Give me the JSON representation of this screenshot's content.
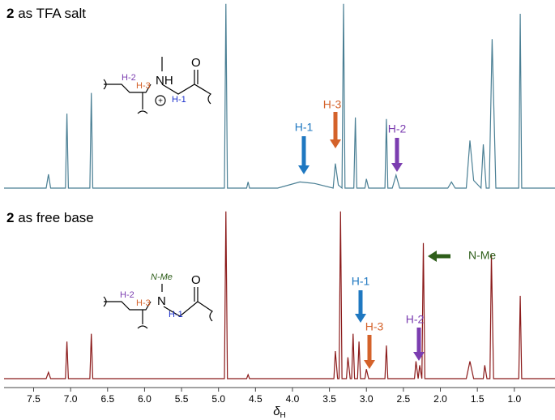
{
  "chart_data": [
    {
      "type": "line",
      "title_number": "2",
      "title": "as TFA salt",
      "color": "#4a7f94",
      "xlim": [
        7.9,
        0.45
      ],
      "ylim": [
        -5,
        240
      ],
      "x": [
        7.9,
        7.33,
        7.3,
        7.27,
        7.07,
        7.05,
        7.03,
        6.74,
        6.72,
        6.7,
        4.92,
        4.9,
        4.88,
        4.62,
        4.6,
        4.58,
        4.2,
        3.9,
        3.7,
        3.45,
        3.42,
        3.38,
        3.33,
        3.31,
        3.29,
        3.17,
        3.15,
        3.13,
        3.02,
        3.0,
        2.97,
        2.75,
        2.73,
        2.71,
        2.65,
        2.6,
        2.55,
        1.9,
        1.85,
        1.8,
        1.65,
        1.6,
        1.55,
        1.45,
        1.42,
        1.38,
        1.34,
        1.3,
        1.25,
        0.94,
        0.92,
        0.9,
        0.45
      ],
      "values": [
        0,
        0,
        18,
        0,
        0,
        97,
        0,
        0,
        124,
        0,
        0,
        240,
        0,
        0,
        8,
        0,
        0,
        8,
        6,
        0,
        32,
        4,
        0,
        240,
        0,
        0,
        92,
        0,
        0,
        12,
        0,
        0,
        90,
        0,
        0,
        17,
        0,
        0,
        8,
        0,
        0,
        62,
        10,
        0,
        57,
        0,
        0,
        194,
        0,
        0,
        227,
        0,
        0
      ],
      "annotations": [
        {
          "text": "H-1",
          "color": "#1f78c1"
        },
        {
          "text": "H-3",
          "color": "#d4622a"
        },
        {
          "text": "H-2",
          "color": "#7b3db0"
        }
      ],
      "structure_labels": [
        "H-2",
        "H-3",
        "NH",
        "H-1",
        "O"
      ]
    },
    {
      "type": "line",
      "title_number": "2",
      "title": "as free base",
      "color": "#8b1a1a",
      "xlim": [
        7.9,
        0.45
      ],
      "ylim": [
        -3,
        215
      ],
      "xticks": [
        7.5,
        {
          "value": 7,
          "label": "7.0"
        },
        6.5,
        {
          "value": 6,
          "label": "6.0"
        },
        5.5,
        {
          "value": 5,
          "label": "5.0"
        },
        4.5,
        {
          "value": 4,
          "label": "4.0"
        },
        3.5,
        {
          "value": 3,
          "label": "3.0"
        },
        2.5,
        {
          "value": 2,
          "label": "2.0"
        },
        1.5,
        {
          "value": 1,
          "label": "1.0"
        }
      ],
      "xlabel": {
        "symbol": "δ",
        "subscript": "H"
      },
      "x": [
        7.9,
        7.33,
        7.3,
        7.27,
        7.07,
        7.05,
        7.03,
        6.74,
        6.72,
        6.7,
        4.92,
        4.9,
        4.88,
        4.62,
        4.6,
        4.58,
        3.44,
        3.42,
        3.39,
        3.37,
        3.35,
        3.33,
        3.27,
        3.25,
        3.22,
        3.2,
        3.18,
        3.16,
        3.12,
        3.1,
        3.08,
        3.02,
        3.0,
        2.97,
        2.75,
        2.73,
        2.71,
        2.35,
        2.33,
        2.3,
        2.28,
        2.25,
        2.23,
        2.21,
        1.65,
        1.6,
        1.55,
        1.42,
        1.4,
        1.37,
        1.33,
        1.31,
        1.28,
        0.94,
        0.92,
        0.9,
        0.45
      ],
      "values": [
        0,
        0,
        8,
        0,
        0,
        47,
        0,
        0,
        57,
        0,
        0,
        212,
        0,
        0,
        5,
        0,
        0,
        35,
        0,
        0,
        212,
        0,
        0,
        27,
        0,
        0,
        57,
        0,
        0,
        47,
        0,
        0,
        12,
        0,
        0,
        42,
        0,
        0,
        22,
        0,
        17,
        0,
        172,
        0,
        0,
        22,
        0,
        0,
        17,
        0,
        0,
        157,
        0,
        0,
        105,
        0,
        0
      ],
      "annotations": [
        {
          "text": "H-1",
          "color": "#1f78c1"
        },
        {
          "text": "H-3",
          "color": "#d4622a"
        },
        {
          "text": "H-2",
          "color": "#7b3db0"
        },
        {
          "text": "N-Me",
          "color": "#2e5e1a"
        }
      ],
      "structure_labels": [
        "N-Me",
        "H-2",
        "H-3",
        "N",
        "H-1",
        "O"
      ]
    }
  ]
}
